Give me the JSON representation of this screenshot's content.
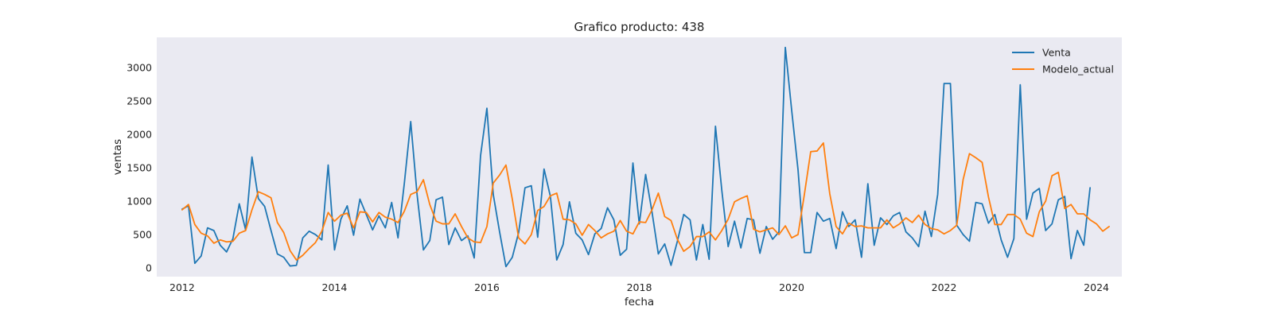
{
  "chart_data": {
    "type": "line",
    "title": "Grafico producto: 438",
    "xlabel": "fecha",
    "ylabel": "ventas",
    "x_start": "2012-01",
    "x_frequency": "monthly",
    "xlim": [
      "2011-09",
      "2024-05"
    ],
    "ylim": [
      -130,
      3450
    ],
    "xticks": [
      "2012",
      "2014",
      "2016",
      "2018",
      "2020",
      "2022",
      "2024"
    ],
    "yticks": [
      0,
      500,
      1000,
      1500,
      2000,
      2500,
      3000
    ],
    "grid": false,
    "legend_position": "top-right",
    "background": "#eaeaf2",
    "series": [
      {
        "name": "Venta",
        "color": "#1f77b4",
        "values": [
          880,
          930,
          70,
          180,
          600,
          560,
          340,
          240,
          440,
          960,
          570,
          1660,
          1040,
          920,
          560,
          210,
          160,
          30,
          40,
          450,
          550,
          500,
          420,
          1540,
          270,
          730,
          930,
          490,
          1030,
          800,
          570,
          780,
          600,
          980,
          450,
          1270,
          2190,
          1100,
          270,
          410,
          1020,
          1060,
          350,
          600,
          410,
          480,
          150,
          1680,
          2390,
          1100,
          540,
          20,
          160,
          530,
          1200,
          1230,
          460,
          1480,
          1070,
          120,
          350,
          990,
          520,
          420,
          200,
          510,
          590,
          900,
          720,
          190,
          280,
          1570,
          660,
          1400,
          840,
          210,
          360,
          40,
          400,
          800,
          720,
          120,
          650,
          130,
          2120,
          1160,
          320,
          700,
          300,
          740,
          720,
          220,
          620,
          430,
          540,
          3300,
          2360,
          1470,
          230,
          230,
          830,
          700,
          740,
          290,
          840,
          620,
          720,
          160,
          1260,
          340,
          750,
          650,
          780,
          830,
          540,
          450,
          320,
          850,
          470,
          1100,
          2760,
          2760,
          640,
          500,
          400,
          980,
          960,
          670,
          800,
          420,
          160,
          440,
          2740,
          730,
          1120,
          1190,
          560,
          660,
          1020,
          1070,
          140,
          560,
          340,
          1200
        ]
      },
      {
        "name": "Modelo_actual",
        "color": "#ff7f0e",
        "values": [
          870,
          950,
          650,
          520,
          480,
          370,
          420,
          390,
          400,
          520,
          560,
          870,
          1140,
          1100,
          1050,
          680,
          530,
          260,
          120,
          190,
          290,
          380,
          550,
          830,
          700,
          790,
          820,
          600,
          840,
          830,
          690,
          830,
          760,
          730,
          680,
          850,
          1100,
          1140,
          1320,
          950,
          700,
          660,
          660,
          810,
          620,
          450,
          390,
          380,
          620,
          1270,
          1390,
          1540,
          1030,
          450,
          360,
          500,
          860,
          920,
          1080,
          1120,
          730,
          720,
          660,
          490,
          650,
          560,
          450,
          510,
          550,
          710,
          550,
          510,
          690,
          680,
          870,
          1120,
          770,
          710,
          430,
          250,
          320,
          470,
          470,
          540,
          420,
          560,
          730,
          990,
          1040,
          1080,
          580,
          540,
          570,
          600,
          500,
          630,
          450,
          500,
          1100,
          1740,
          1750,
          1870,
          1110,
          620,
          510,
          670,
          620,
          630,
          600,
          600,
          600,
          720,
          600,
          660,
          750,
          680,
          790,
          650,
          590,
          570,
          510,
          560,
          640,
          1320,
          1710,
          1650,
          1580,
          1060,
          650,
          650,
          800,
          800,
          730,
          520,
          470,
          840,
          1000,
          1380,
          1430,
          890,
          950,
          810,
          810,
          720,
          660,
          550,
          620
        ]
      }
    ]
  }
}
